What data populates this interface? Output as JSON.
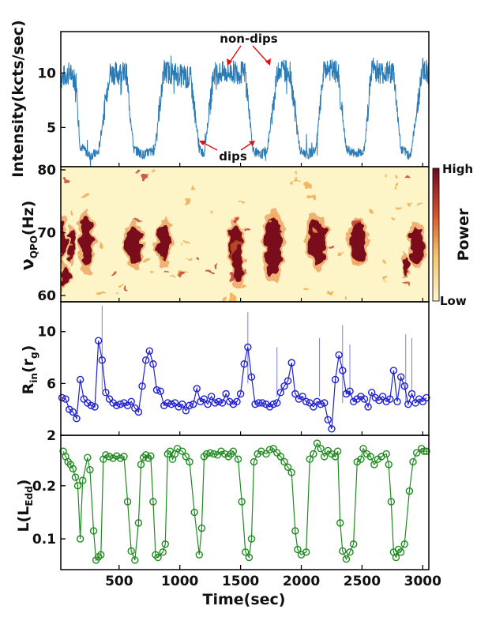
{
  "chart_data": [
    {
      "type": "line",
      "panel": "intensity",
      "ylabel": "Intensity(kcts/sec)",
      "yticks": [
        5,
        10
      ],
      "ylim": [
        1.4,
        13.8
      ],
      "xlim": [
        20,
        3050
      ],
      "color": "#2a7ab5",
      "x": [
        20,
        90,
        150,
        175,
        260,
        330,
        420,
        560,
        620,
        700,
        790,
        870,
        930,
        1090,
        1160,
        1200,
        1280,
        1350,
        1450,
        1540,
        1600,
        1660,
        1720,
        1810,
        1910,
        1990,
        2060,
        2120,
        2190,
        2300,
        2370,
        2440,
        2520,
        2580,
        2660,
        2760,
        2820,
        2900,
        3000,
        3050
      ],
      "values": [
        9.5,
        10.0,
        9.2,
        3.4,
        2.4,
        2.7,
        10.0,
        10.0,
        3.0,
        2.5,
        2.9,
        10.2,
        10.0,
        9.5,
        3.0,
        2.6,
        10.0,
        10.0,
        10.1,
        10.0,
        3.0,
        2.4,
        3.0,
        10.5,
        10.0,
        2.8,
        2.5,
        3.0,
        10.5,
        10.0,
        3.0,
        2.6,
        2.9,
        10.5,
        10.0,
        10.1,
        3.0,
        2.4,
        10.5,
        10.0
      ],
      "annotations": {
        "nondips_label": "non-dips",
        "dips_label": "dips"
      }
    },
    {
      "type": "heatmap",
      "panel": "qpo",
      "ylabel_main": "ν",
      "ylabel_sub": "QPO",
      "ylabel_rest": "(Hz)",
      "yticks": [
        60,
        70,
        80
      ],
      "ylim": [
        59,
        80.5
      ],
      "xlim": [
        20,
        3050
      ],
      "colorbar": {
        "label": "Power",
        "high": "High",
        "low": "Low"
      },
      "background": "#fdf5c8",
      "high_color": "#7a0a1f",
      "blobs": [
        {
          "x": 30,
          "y": 68.5,
          "rx": 35,
          "ry": 3.2
        },
        {
          "x": 110,
          "y": 68.0,
          "rx": 25,
          "ry": 2.6
        },
        {
          "x": 230,
          "y": 68.5,
          "rx": 55,
          "ry": 4.0
        },
        {
          "x": 620,
          "y": 68.0,
          "rx": 65,
          "ry": 3.0
        },
        {
          "x": 870,
          "y": 68.5,
          "rx": 60,
          "ry": 3.0
        },
        {
          "x": 1460,
          "y": 68.5,
          "rx": 55,
          "ry": 3.0
        },
        {
          "x": 1480,
          "y": 65.0,
          "rx": 45,
          "ry": 3.0
        },
        {
          "x": 1770,
          "y": 68.0,
          "rx": 70,
          "ry": 4.5
        },
        {
          "x": 2130,
          "y": 68.5,
          "rx": 75,
          "ry": 3.5
        },
        {
          "x": 2470,
          "y": 68.5,
          "rx": 65,
          "ry": 3.0
        },
        {
          "x": 2950,
          "y": 68.0,
          "rx": 55,
          "ry": 3.0
        },
        {
          "x": 60,
          "y": 63.0,
          "rx": 30,
          "ry": 1.6
        },
        {
          "x": 2860,
          "y": 65.0,
          "rx": 25,
          "ry": 1.5
        }
      ]
    },
    {
      "type": "line",
      "panel": "rin",
      "ylabel_main": "R",
      "ylabel_sub": "in",
      "ylabel_rest": "(r",
      "ylabel_sub2": "g",
      "ylabel_end": ")",
      "yticks": [
        2,
        6,
        10
      ],
      "ylim": [
        2,
        12.3
      ],
      "xlim": [
        20,
        3050
      ],
      "color": "#1f1fd6",
      "x": [
        30,
        60,
        90,
        120,
        150,
        180,
        210,
        240,
        270,
        300,
        330,
        360,
        390,
        420,
        450,
        480,
        510,
        540,
        570,
        600,
        630,
        660,
        690,
        720,
        750,
        780,
        810,
        840,
        870,
        900,
        930,
        960,
        990,
        1020,
        1050,
        1080,
        1110,
        1140,
        1170,
        1200,
        1230,
        1260,
        1290,
        1320,
        1350,
        1380,
        1410,
        1440,
        1470,
        1500,
        1530,
        1560,
        1590,
        1620,
        1650,
        1680,
        1710,
        1740,
        1770,
        1800,
        1830,
        1860,
        1890,
        1920,
        1950,
        1980,
        2010,
        2040,
        2070,
        2100,
        2130,
        2160,
        2190,
        2220,
        2250,
        2280,
        2310,
        2340,
        2370,
        2400,
        2430,
        2460,
        2490,
        2520,
        2550,
        2580,
        2610,
        2640,
        2670,
        2700,
        2730,
        2760,
        2790,
        2820,
        2850,
        2880,
        2910,
        2940,
        2970,
        3000,
        3030
      ],
      "values": [
        4.9,
        4.8,
        4.0,
        3.8,
        3.3,
        6.3,
        4.8,
        4.5,
        4.3,
        4.2,
        9.3,
        7.8,
        5.3,
        4.8,
        4.5,
        4.3,
        4.4,
        4.5,
        4.3,
        4.6,
        4.1,
        3.8,
        5.8,
        7.8,
        8.5,
        7.5,
        5.5,
        5.4,
        4.3,
        4.5,
        4.4,
        4.5,
        4.2,
        4.4,
        3.9,
        4.3,
        4.4,
        5.6,
        4.6,
        4.8,
        4.4,
        5.0,
        4.5,
        4.6,
        4.5,
        5.2,
        4.6,
        4.4,
        4.6,
        5.2,
        7.5,
        8.8,
        6.5,
        4.4,
        4.5,
        4.5,
        4.4,
        4.2,
        4.4,
        4.5,
        5.3,
        5.8,
        6.2,
        7.6,
        5.2,
        4.8,
        5.0,
        4.6,
        4.5,
        4.2,
        4.6,
        4.4,
        4.5,
        3.2,
        2.5,
        6.3,
        8.2,
        7.0,
        5.2,
        5.4,
        4.6,
        4.8,
        5.0,
        4.8,
        4.2,
        5.3,
        4.9,
        4.7,
        5.0,
        4.6,
        4.8,
        7.0,
        4.6,
        6.5,
        5.8,
        4.4,
        5.2,
        4.5,
        4.8,
        4.6,
        4.9
      ],
      "errbars": [
        {
          "x": 360,
          "lo": 5.5,
          "hi": 12.0
        },
        {
          "x": 1560,
          "lo": 6.0,
          "hi": 11.5
        },
        {
          "x": 1800,
          "lo": 5.0,
          "hi": 8.8
        },
        {
          "x": 2150,
          "lo": 5.0,
          "hi": 9.5
        },
        {
          "x": 2340,
          "lo": 4.5,
          "hi": 10.5
        },
        {
          "x": 2400,
          "lo": 5.0,
          "hi": 9.0
        },
        {
          "x": 2860,
          "lo": 4.5,
          "hi": 9.8
        },
        {
          "x": 2910,
          "lo": 5.5,
          "hi": 9.5
        }
      ]
    },
    {
      "type": "line",
      "panel": "luminosity",
      "ylabel_main": "L(L",
      "ylabel_sub": "Edd",
      "ylabel_end": ")",
      "yticks": [
        0.1,
        0.2
      ],
      "ylim": [
        0.042,
        0.295
      ],
      "xlim": [
        20,
        3050
      ],
      "xticks": [
        500,
        1000,
        1500,
        2000,
        2500,
        3000
      ],
      "xlabel": "Time(sec)",
      "color": "#1f8a1f",
      "x": [
        40,
        60,
        80,
        100,
        120,
        140,
        160,
        180,
        200,
        240,
        260,
        290,
        310,
        330,
        350,
        370,
        390,
        420,
        450,
        480,
        510,
        540,
        570,
        600,
        630,
        660,
        680,
        700,
        720,
        740,
        760,
        780,
        800,
        820,
        860,
        880,
        900,
        920,
        940,
        960,
        980,
        1020,
        1050,
        1080,
        1120,
        1160,
        1180,
        1200,
        1220,
        1250,
        1280,
        1310,
        1340,
        1370,
        1400,
        1420,
        1440,
        1480,
        1510,
        1540,
        1570,
        1590,
        1610,
        1640,
        1670,
        1710,
        1740,
        1770,
        1800,
        1830,
        1860,
        1890,
        1920,
        1950,
        1970,
        2000,
        2040,
        2070,
        2100,
        2130,
        2160,
        2190,
        2220,
        2250,
        2280,
        2300,
        2320,
        2340,
        2370,
        2400,
        2430,
        2460,
        2490,
        2510,
        2540,
        2570,
        2600,
        2630,
        2660,
        2700,
        2720,
        2740,
        2760,
        2780,
        2800,
        2820,
        2850,
        2890,
        2920,
        2950,
        2990,
        3010,
        3030
      ],
      "values": [
        0.265,
        0.255,
        0.245,
        0.24,
        0.232,
        0.216,
        0.2,
        0.1,
        0.21,
        0.253,
        0.23,
        0.115,
        0.06,
        0.066,
        0.07,
        0.25,
        0.258,
        0.255,
        0.252,
        0.256,
        0.252,
        0.255,
        0.17,
        0.077,
        0.06,
        0.13,
        0.24,
        0.253,
        0.258,
        0.252,
        0.256,
        0.17,
        0.07,
        0.065,
        0.075,
        0.09,
        0.26,
        0.265,
        0.25,
        0.26,
        0.27,
        0.265,
        0.255,
        0.245,
        0.15,
        0.07,
        0.12,
        0.255,
        0.26,
        0.262,
        0.26,
        0.258,
        0.265,
        0.26,
        0.255,
        0.26,
        0.265,
        0.25,
        0.17,
        0.075,
        0.065,
        0.1,
        0.245,
        0.26,
        0.265,
        0.26,
        0.268,
        0.27,
        0.262,
        0.255,
        0.245,
        0.235,
        0.225,
        0.115,
        0.08,
        0.07,
        0.075,
        0.25,
        0.26,
        0.28,
        0.27,
        0.255,
        0.266,
        0.26,
        0.255,
        0.265,
        0.13,
        0.077,
        0.062,
        0.075,
        0.09,
        0.245,
        0.25,
        0.27,
        0.26,
        0.255,
        0.24,
        0.25,
        0.255,
        0.26,
        0.24,
        0.17,
        0.075,
        0.065,
        0.08,
        0.075,
        0.09,
        0.19,
        0.245,
        0.262,
        0.27,
        0.265,
        0.265
      ]
    }
  ]
}
